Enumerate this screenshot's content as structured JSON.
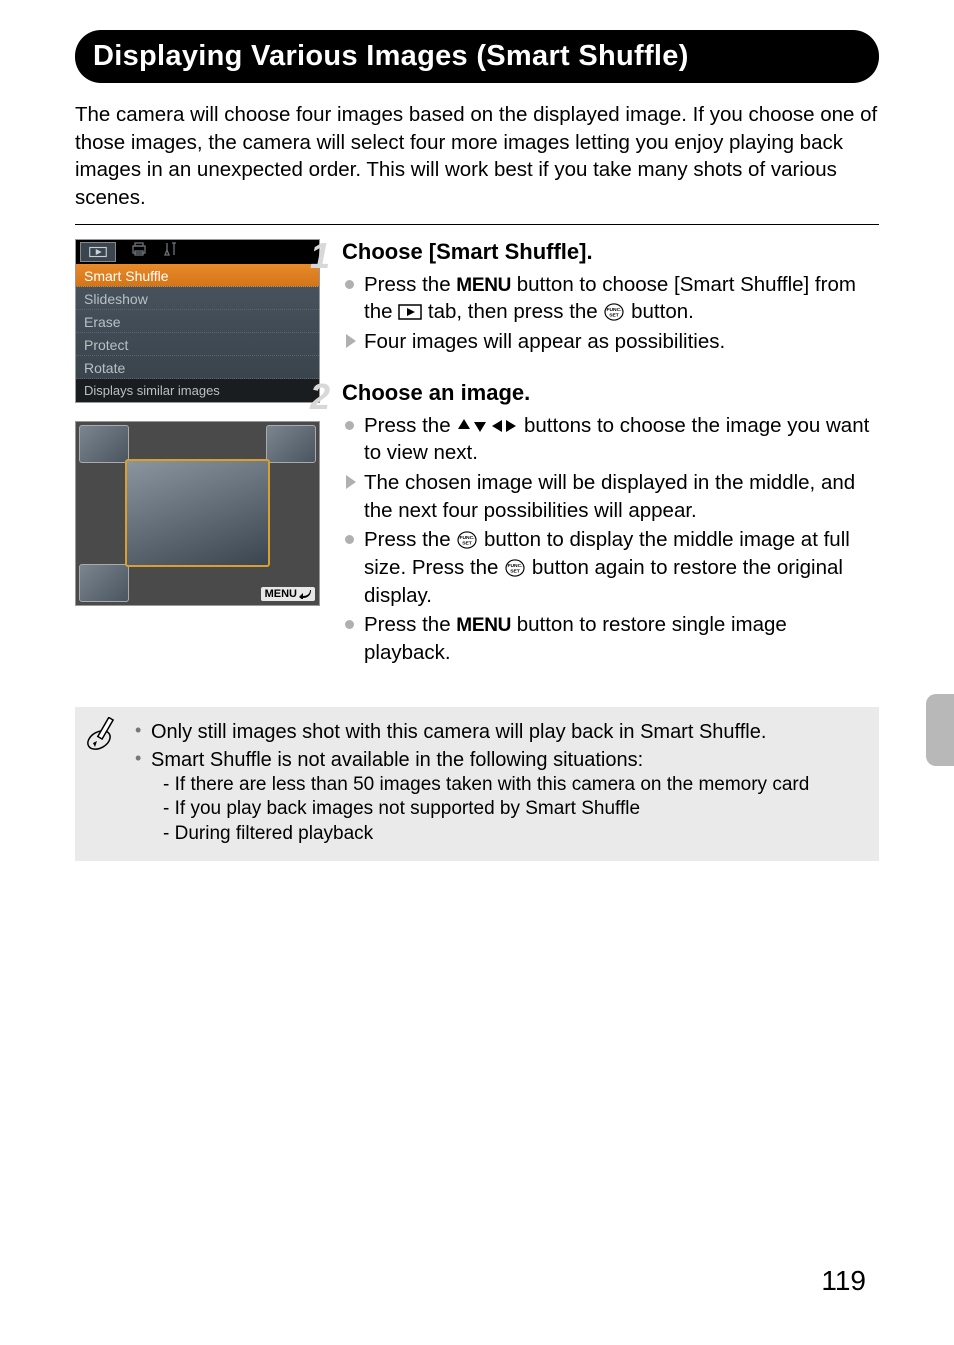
{
  "title": "Displaying Various Images (Smart Shuffle)",
  "intro": "The camera will choose four images based on the displayed image.\nIf you choose one of those images, the camera will select four more images letting you enjoy playing back images in an unexpected order.\nThis will work best if you take many shots of various scenes.",
  "menu": {
    "items": [
      "Smart Shuffle",
      "Slideshow",
      "Erase",
      "Protect",
      "Rotate"
    ],
    "footer": "Displays similar images"
  },
  "preview": {
    "return_label": "MENU"
  },
  "steps": [
    {
      "num": "1",
      "heading": "Choose [Smart Shuffle].",
      "items": [
        {
          "type": "dot",
          "parts": [
            "Press the ",
            {
              "icon": "menu"
            },
            " button to choose [Smart Shuffle] from the ",
            {
              "icon": "play-tab"
            },
            " tab, then press the ",
            {
              "icon": "funcset"
            },
            " button."
          ]
        },
        {
          "type": "tri",
          "parts": [
            "Four images will appear as possibilities."
          ]
        }
      ]
    },
    {
      "num": "2",
      "heading": "Choose an image.",
      "items": [
        {
          "type": "dot",
          "parts": [
            "Press the ",
            {
              "icon": "dpad"
            },
            " buttons to choose the image you want to view next."
          ]
        },
        {
          "type": "tri",
          "parts": [
            "The chosen image will be displayed in the middle, and the next four possibilities will appear."
          ]
        },
        {
          "type": "dot",
          "parts": [
            "Press the ",
            {
              "icon": "funcset"
            },
            " button to display the middle image at full size. Press the ",
            {
              "icon": "funcset"
            },
            " button again to restore the original display."
          ]
        },
        {
          "type": "dot",
          "parts": [
            "Press the ",
            {
              "icon": "menu"
            },
            " button to restore single image playback."
          ]
        }
      ]
    }
  ],
  "notes": {
    "items": [
      "Only still images shot with this camera will play back in Smart Shuffle.",
      "Smart Shuffle is not available in the following situations:"
    ],
    "sub_items": [
      "If there are less than 50 images taken with this camera on the memory card",
      "If you play back images not supported by Smart Shuffle",
      "During filtered playback"
    ]
  },
  "page_number": "119",
  "colors": {
    "title_bg": "#000000",
    "title_fg": "#ffffff",
    "step_num": "#d8d8d8",
    "bullet": "#b0b0b0",
    "note_bg": "#eaeaea",
    "menu_selected_bg": "#e88a2a",
    "side_tab": "#b8b8b8"
  }
}
